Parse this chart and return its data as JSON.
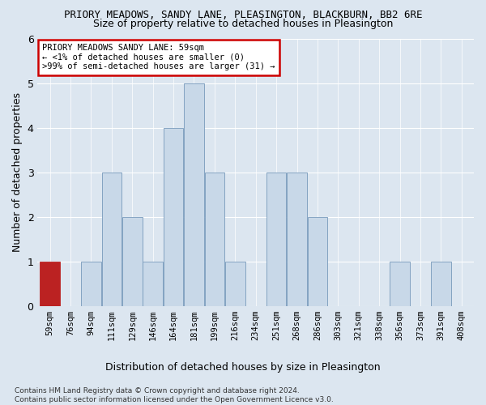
{
  "title": "PRIORY MEADOWS, SANDY LANE, PLEASINGTON, BLACKBURN, BB2 6RE",
  "subtitle": "Size of property relative to detached houses in Pleasington",
  "xlabel": "Distribution of detached houses by size in Pleasington",
  "ylabel": "Number of detached properties",
  "categories": [
    "59sqm",
    "76sqm",
    "94sqm",
    "111sqm",
    "129sqm",
    "146sqm",
    "164sqm",
    "181sqm",
    "199sqm",
    "216sqm",
    "234sqm",
    "251sqm",
    "268sqm",
    "286sqm",
    "303sqm",
    "321sqm",
    "338sqm",
    "356sqm",
    "373sqm",
    "391sqm",
    "408sqm"
  ],
  "values": [
    1,
    0,
    1,
    3,
    2,
    1,
    4,
    5,
    3,
    1,
    0,
    3,
    3,
    2,
    0,
    0,
    0,
    1,
    0,
    1,
    0
  ],
  "highlight_index": 0,
  "bar_color": "#c8d8e8",
  "bar_edge_color": "#7799bb",
  "highlight_bar_color": "#bb2222",
  "ylim": [
    0,
    6
  ],
  "yticks": [
    0,
    1,
    2,
    3,
    4,
    5,
    6
  ],
  "annotation_text": "PRIORY MEADOWS SANDY LANE: 59sqm\n← <1% of detached houses are smaller (0)\n>99% of semi-detached houses are larger (31) →",
  "annotation_box_facecolor": "#ffffff",
  "annotation_box_edgecolor": "#cc0000",
  "footer_text": "Contains HM Land Registry data © Crown copyright and database right 2024.\nContains public sector information licensed under the Open Government Licence v3.0.",
  "background_color": "#dce6f0",
  "axes_background_color": "#dce6f0",
  "title_fontsize": 9,
  "subtitle_fontsize": 9,
  "ylabel_fontsize": 9,
  "xlabel_fontsize": 9,
  "tick_fontsize": 7.5,
  "annotation_fontsize": 7.5,
  "footer_fontsize": 6.5
}
